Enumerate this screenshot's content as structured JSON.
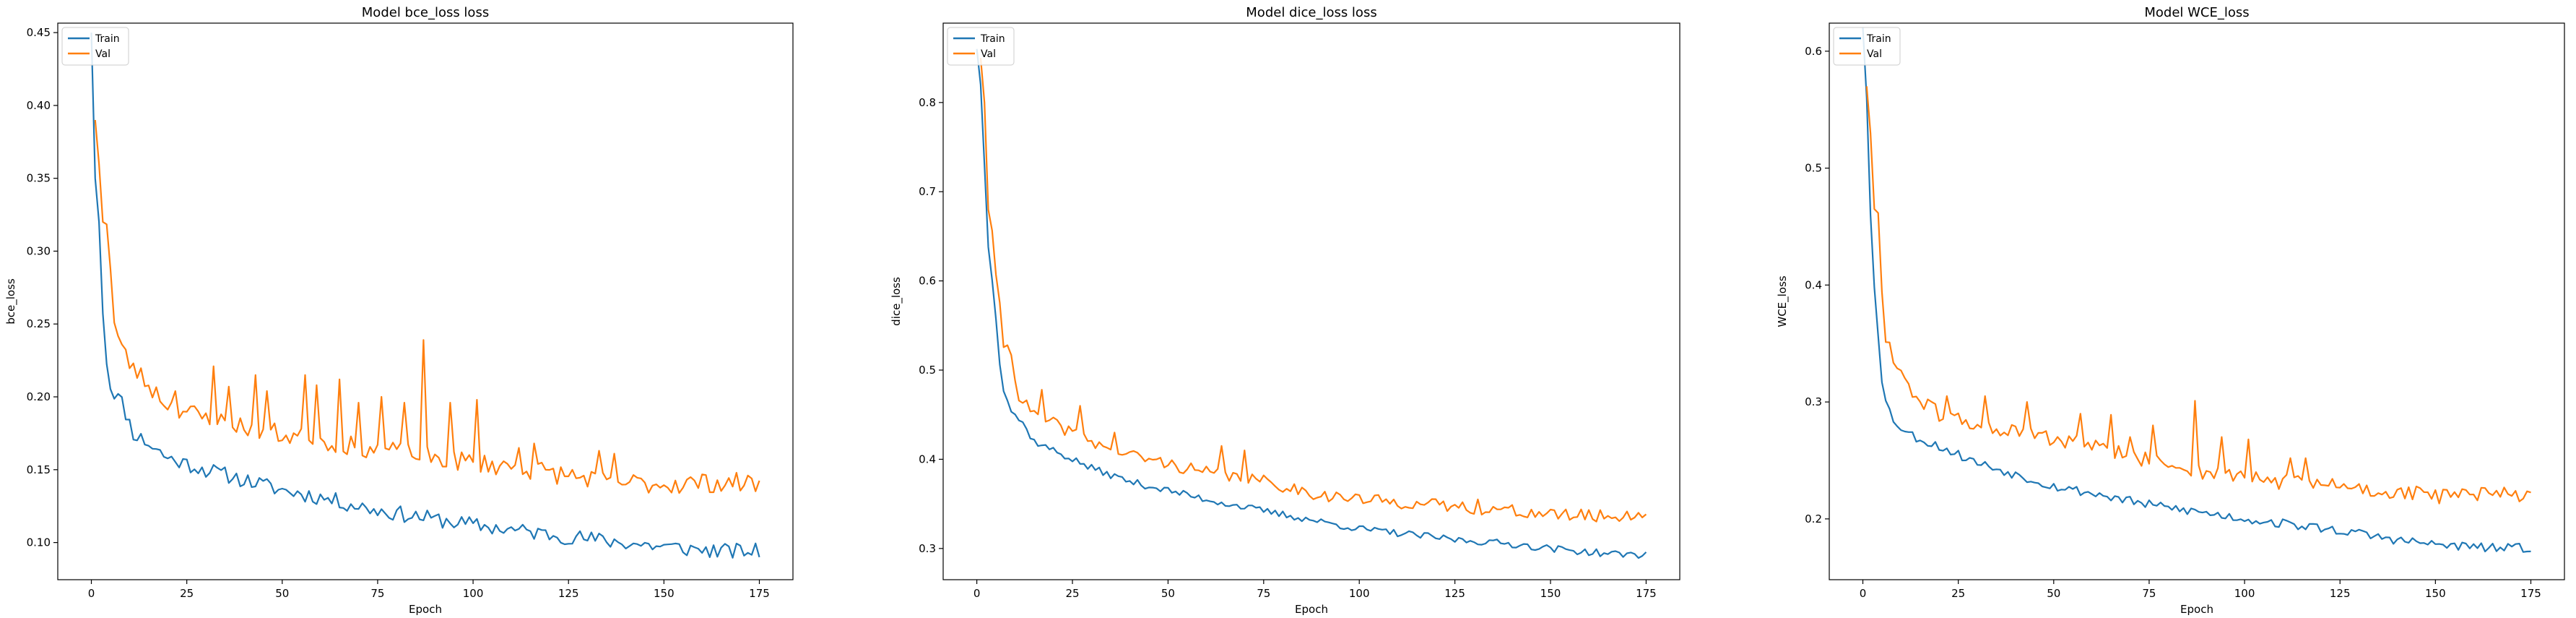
{
  "figure": {
    "background": "#ffffff",
    "train_color": "#1f77b4",
    "val_color": "#ff7f0e"
  },
  "chart_data": [
    {
      "type": "line",
      "title": "Model bce_loss loss",
      "xlabel": "Epoch",
      "ylabel": "bce_loss",
      "xlim": [
        -8.8,
        183.8
      ],
      "ylim": [
        0.0745,
        0.4565
      ],
      "xticks": [
        0,
        25,
        50,
        75,
        100,
        125,
        150,
        175
      ],
      "xtick_labels": [
        "0",
        "25",
        "50",
        "75",
        "100",
        "125",
        "150",
        "175"
      ],
      "yticks": [
        0.1,
        0.15,
        0.2,
        0.25,
        0.3,
        0.35,
        0.4,
        0.45
      ],
      "ytick_labels": [
        "0.10",
        "0.15",
        "0.20",
        "0.25",
        "0.30",
        "0.35",
        "0.40",
        "0.45"
      ],
      "legend": {
        "position": "top-left",
        "entries": [
          "Train",
          "Val"
        ]
      },
      "grid": false,
      "series": [
        {
          "name": "Train",
          "color": "#1f77b4",
          "anchors": [
            [
              0,
              0.45
            ],
            [
              1,
              0.35
            ],
            [
              2,
              0.32
            ],
            [
              3,
              0.26
            ],
            [
              4,
              0.225
            ],
            [
              5,
              0.207
            ],
            [
              8,
              0.196
            ],
            [
              11,
              0.175
            ],
            [
              15,
              0.168
            ],
            [
              20,
              0.158
            ],
            [
              25,
              0.154
            ],
            [
              30,
              0.15
            ],
            [
              40,
              0.143
            ],
            [
              50,
              0.136
            ],
            [
              60,
              0.131
            ],
            [
              75,
              0.122
            ],
            [
              90,
              0.116
            ],
            [
              100,
              0.112
            ],
            [
              125,
              0.104
            ],
            [
              150,
              0.097
            ],
            [
              165,
              0.094
            ],
            [
              175,
              0.094
            ]
          ],
          "noise": 0.0055,
          "seed": 11
        },
        {
          "name": "Val",
          "color": "#ff7f0e",
          "anchors": [
            [
              1,
              0.39
            ],
            [
              2,
              0.36
            ],
            [
              3,
              0.32
            ],
            [
              4,
              0.322
            ],
            [
              5,
              0.29
            ],
            [
              6,
              0.25
            ],
            [
              8,
              0.233
            ],
            [
              10,
              0.223
            ],
            [
              15,
              0.208
            ],
            [
              20,
              0.195
            ],
            [
              30,
              0.185
            ],
            [
              40,
              0.18
            ],
            [
              50,
              0.174
            ],
            [
              60,
              0.17
            ],
            [
              75,
              0.164
            ],
            [
              90,
              0.158
            ],
            [
              100,
              0.155
            ],
            [
              110,
              0.152
            ],
            [
              125,
              0.146
            ],
            [
              140,
              0.141
            ],
            [
              150,
              0.14
            ],
            [
              160,
              0.141
            ],
            [
              175,
              0.141
            ]
          ],
          "noise": 0.007,
          "seed": 23,
          "spikes": [
            [
              22,
              0.204
            ],
            [
              32,
              0.221
            ],
            [
              36,
              0.207
            ],
            [
              43,
              0.215
            ],
            [
              46,
              0.204
            ],
            [
              56,
              0.215
            ],
            [
              59,
              0.208
            ],
            [
              65,
              0.212
            ],
            [
              70,
              0.196
            ],
            [
              76,
              0.2
            ],
            [
              82,
              0.196
            ],
            [
              87,
              0.239
            ],
            [
              94,
              0.196
            ],
            [
              101,
              0.198
            ],
            [
              112,
              0.165
            ],
            [
              116,
              0.168
            ],
            [
              133,
              0.163
            ],
            [
              137,
              0.161
            ]
          ]
        }
      ]
    },
    {
      "type": "line",
      "title": "Model dice_loss loss",
      "xlabel": "Epoch",
      "ylabel": "dice_loss",
      "xlim": [
        -8.8,
        183.8
      ],
      "ylim": [
        0.265,
        0.889
      ],
      "xticks": [
        0,
        25,
        50,
        75,
        100,
        125,
        150,
        175
      ],
      "xtick_labels": [
        "0",
        "25",
        "50",
        "75",
        "100",
        "125",
        "150",
        "175"
      ],
      "yticks": [
        0.3,
        0.4,
        0.5,
        0.6,
        0.7,
        0.8
      ],
      "ytick_labels": [
        "0.3",
        "0.4",
        "0.5",
        "0.6",
        "0.7",
        "0.8"
      ],
      "legend": {
        "position": "top-left",
        "entries": [
          "Train",
          "Val"
        ]
      },
      "grid": false,
      "series": [
        {
          "name": "Train",
          "color": "#1f77b4",
          "anchors": [
            [
              0,
              0.86
            ],
            [
              1,
              0.82
            ],
            [
              2,
              0.73
            ],
            [
              3,
              0.64
            ],
            [
              4,
              0.6
            ],
            [
              5,
              0.56
            ],
            [
              6,
              0.51
            ],
            [
              7,
              0.48
            ],
            [
              9,
              0.455
            ],
            [
              12,
              0.44
            ],
            [
              15,
              0.42
            ],
            [
              20,
              0.41
            ],
            [
              25,
              0.4
            ],
            [
              30,
              0.39
            ],
            [
              40,
              0.375
            ],
            [
              50,
              0.365
            ],
            [
              60,
              0.355
            ],
            [
              75,
              0.342
            ],
            [
              90,
              0.33
            ],
            [
              100,
              0.322
            ],
            [
              125,
              0.31
            ],
            [
              140,
              0.305
            ],
            [
              150,
              0.3
            ],
            [
              165,
              0.294
            ],
            [
              175,
              0.293
            ]
          ],
          "noise": 0.004,
          "seed": 37
        },
        {
          "name": "Val",
          "color": "#ff7f0e",
          "anchors": [
            [
              1,
              0.85
            ],
            [
              2,
              0.8
            ],
            [
              3,
              0.68
            ],
            [
              4,
              0.66
            ],
            [
              5,
              0.6
            ],
            [
              6,
              0.57
            ],
            [
              7,
              0.53
            ],
            [
              9,
              0.52
            ],
            [
              11,
              0.47
            ],
            [
              15,
              0.45
            ],
            [
              20,
              0.44
            ],
            [
              25,
              0.43
            ],
            [
              30,
              0.42
            ],
            [
              40,
              0.405
            ],
            [
              50,
              0.395
            ],
            [
              60,
              0.385
            ],
            [
              75,
              0.375
            ],
            [
              90,
              0.36
            ],
            [
              100,
              0.355
            ],
            [
              125,
              0.347
            ],
            [
              140,
              0.342
            ],
            [
              150,
              0.338
            ],
            [
              165,
              0.336
            ],
            [
              175,
              0.338
            ]
          ],
          "noise": 0.007,
          "seed": 41,
          "spikes": [
            [
              17,
              0.478
            ],
            [
              27,
              0.46
            ],
            [
              36,
              0.43
            ],
            [
              64,
              0.415
            ],
            [
              70,
              0.41
            ],
            [
              131,
              0.355
            ]
          ]
        }
      ]
    },
    {
      "type": "line",
      "title": "Model WCE_loss",
      "xlabel": "Epoch",
      "ylabel": "WCE_loss",
      "xlim": [
        -8.8,
        183.8
      ],
      "ylim": [
        0.148,
        0.624
      ],
      "xticks": [
        0,
        25,
        50,
        75,
        100,
        125,
        150,
        175
      ],
      "xtick_labels": [
        "0",
        "25",
        "50",
        "75",
        "100",
        "125",
        "150",
        "175"
      ],
      "yticks": [
        0.2,
        0.3,
        0.4,
        0.5,
        0.6
      ],
      "ytick_labels": [
        "0.2",
        "0.3",
        "0.4",
        "0.5",
        "0.6"
      ],
      "legend": {
        "position": "top-left",
        "entries": [
          "Train",
          "Val"
        ]
      },
      "grid": false,
      "series": [
        {
          "name": "Train",
          "color": "#1f77b4",
          "anchors": [
            [
              0,
              0.62
            ],
            [
              1,
              0.56
            ],
            [
              2,
              0.46
            ],
            [
              3,
              0.4
            ],
            [
              4,
              0.36
            ],
            [
              5,
              0.32
            ],
            [
              6,
              0.3
            ],
            [
              8,
              0.285
            ],
            [
              11,
              0.275
            ],
            [
              15,
              0.268
            ],
            [
              20,
              0.262
            ],
            [
              25,
              0.255
            ],
            [
              30,
              0.248
            ],
            [
              40,
              0.238
            ],
            [
              50,
              0.228
            ],
            [
              60,
              0.222
            ],
            [
              75,
              0.212
            ],
            [
              90,
              0.205
            ],
            [
              100,
              0.2
            ],
            [
              125,
              0.19
            ],
            [
              140,
              0.182
            ],
            [
              150,
              0.178
            ],
            [
              165,
              0.175
            ],
            [
              175,
              0.175
            ]
          ],
          "noise": 0.004,
          "seed": 53
        },
        {
          "name": "Val",
          "color": "#ff7f0e",
          "anchors": [
            [
              1,
              0.57
            ],
            [
              2,
              0.53
            ],
            [
              3,
              0.465
            ],
            [
              4,
              0.465
            ],
            [
              5,
              0.39
            ],
            [
              6,
              0.35
            ],
            [
              8,
              0.34
            ],
            [
              10,
              0.325
            ],
            [
              15,
              0.3
            ],
            [
              20,
              0.29
            ],
            [
              30,
              0.28
            ],
            [
              40,
              0.274
            ],
            [
              50,
              0.268
            ],
            [
              60,
              0.262
            ],
            [
              75,
              0.25
            ],
            [
              90,
              0.24
            ],
            [
              100,
              0.236
            ],
            [
              110,
              0.232
            ],
            [
              125,
              0.228
            ],
            [
              140,
              0.222
            ],
            [
              150,
              0.22
            ],
            [
              160,
              0.22
            ],
            [
              175,
              0.222
            ]
          ],
          "noise": 0.007,
          "seed": 61,
          "spikes": [
            [
              22,
              0.305
            ],
            [
              32,
              0.305
            ],
            [
              43,
              0.3
            ],
            [
              57,
              0.29
            ],
            [
              65,
              0.289
            ],
            [
              70,
              0.27
            ],
            [
              76,
              0.28
            ],
            [
              87,
              0.301
            ],
            [
              94,
              0.27
            ],
            [
              101,
              0.268
            ],
            [
              112,
              0.252
            ],
            [
              116,
              0.252
            ]
          ]
        }
      ]
    }
  ]
}
